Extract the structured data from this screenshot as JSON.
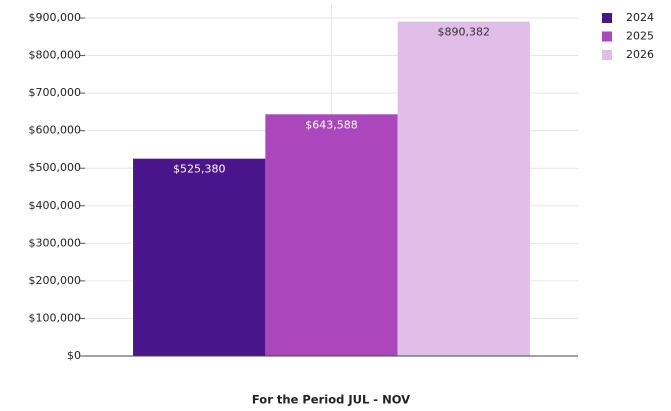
{
  "chart_data": {
    "type": "bar",
    "xlabel": "For the Period JUL - NOV",
    "categories": [
      null
    ],
    "series": [
      {
        "name": "2024",
        "color": "#4a148c",
        "values": [
          525380
        ],
        "value_labels": [
          "$525,380"
        ]
      },
      {
        "name": "2025",
        "color": "#ab47bc",
        "values": [
          643588
        ],
        "value_labels": [
          "$643,588"
        ]
      },
      {
        "name": "2026",
        "color": "#e1bee7",
        "values": [
          890382
        ],
        "value_labels": [
          "$890,382"
        ]
      }
    ],
    "ylim": [
      0,
      900000
    ],
    "yticks": [
      {
        "value": 0,
        "label": "$0"
      },
      {
        "value": 100000,
        "label": "$100,000"
      },
      {
        "value": 200000,
        "label": "$200,000"
      },
      {
        "value": 300000,
        "label": "$300,000"
      },
      {
        "value": 400000,
        "label": "$400,000"
      },
      {
        "value": 500000,
        "label": "$500,000"
      },
      {
        "value": 600000,
        "label": "$600,000"
      },
      {
        "value": 700000,
        "label": "$700,000"
      },
      {
        "value": 800000,
        "label": "$800,000"
      },
      {
        "value": 900000,
        "label": "$900,000"
      }
    ],
    "grid": true,
    "legend": "right"
  }
}
